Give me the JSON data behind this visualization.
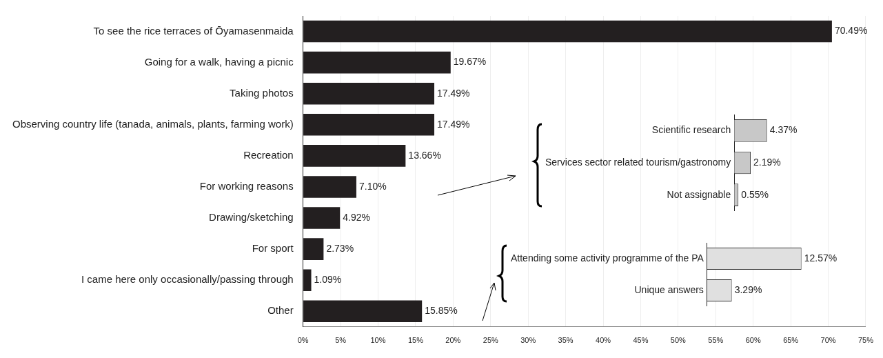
{
  "chart_data": [
    {
      "type": "bar",
      "orientation": "horizontal",
      "categories": [
        "To see the rice terraces of Ōyamasenmaida",
        "Going for a walk, having a picnic",
        "Taking photos",
        "Observing country life (tanada, animals, plants, farming work)",
        "Recreation",
        "For working reasons",
        "Drawing/sketching",
        "For sport",
        "I came here only occasionally/passing through",
        "Other"
      ],
      "values": [
        70.49,
        19.67,
        17.49,
        17.49,
        13.66,
        7.1,
        4.92,
        2.73,
        1.09,
        15.85
      ],
      "value_labels": [
        "70.49%",
        "19.67%",
        "17.49%",
        "17.49%",
        "13.66%",
        "7.10%",
        "4.92%",
        "2.73%",
        "1.09%",
        "15.85%"
      ],
      "color": "#231f20",
      "xlim": [
        0,
        75
      ],
      "xticks": [
        {
          "value": 0,
          "label": "0%"
        },
        {
          "value": 5,
          "label": "5%"
        },
        {
          "value": 10,
          "label": "10%"
        },
        {
          "value": 15,
          "label": "15%"
        },
        {
          "value": 20,
          "label": "20%"
        },
        {
          "value": 25,
          "label": "25%"
        },
        {
          "value": 30,
          "label": "30%"
        },
        {
          "value": 35,
          "label": "35%"
        },
        {
          "value": 40,
          "label": "40%"
        },
        {
          "value": 45,
          "label": "45%"
        },
        {
          "value": 50,
          "label": "50%"
        },
        {
          "value": 55,
          "label": "55%"
        },
        {
          "value": 60,
          "label": "60%"
        },
        {
          "value": 65,
          "label": "65%"
        },
        {
          "value": 70,
          "label": "70%"
        },
        {
          "value": 75,
          "label": "75%"
        }
      ],
      "grid": "x"
    },
    {
      "type": "bar",
      "orientation": "horizontal",
      "categories": [
        "Scientific research",
        "Services sector related tourism/gastronomy",
        "Not assignable"
      ],
      "values": [
        4.37,
        2.19,
        0.55
      ],
      "value_labels": [
        "4.37%",
        "2.19%",
        "0.55%"
      ],
      "color": "#c8c8c8"
    },
    {
      "type": "bar",
      "orientation": "horizontal",
      "categories": [
        "Attending some activity programme of the PA",
        "Unique answers"
      ],
      "values": [
        12.57,
        3.29
      ],
      "value_labels": [
        "12.57%",
        "3.29%"
      ],
      "color": "#e0e0e0"
    }
  ]
}
